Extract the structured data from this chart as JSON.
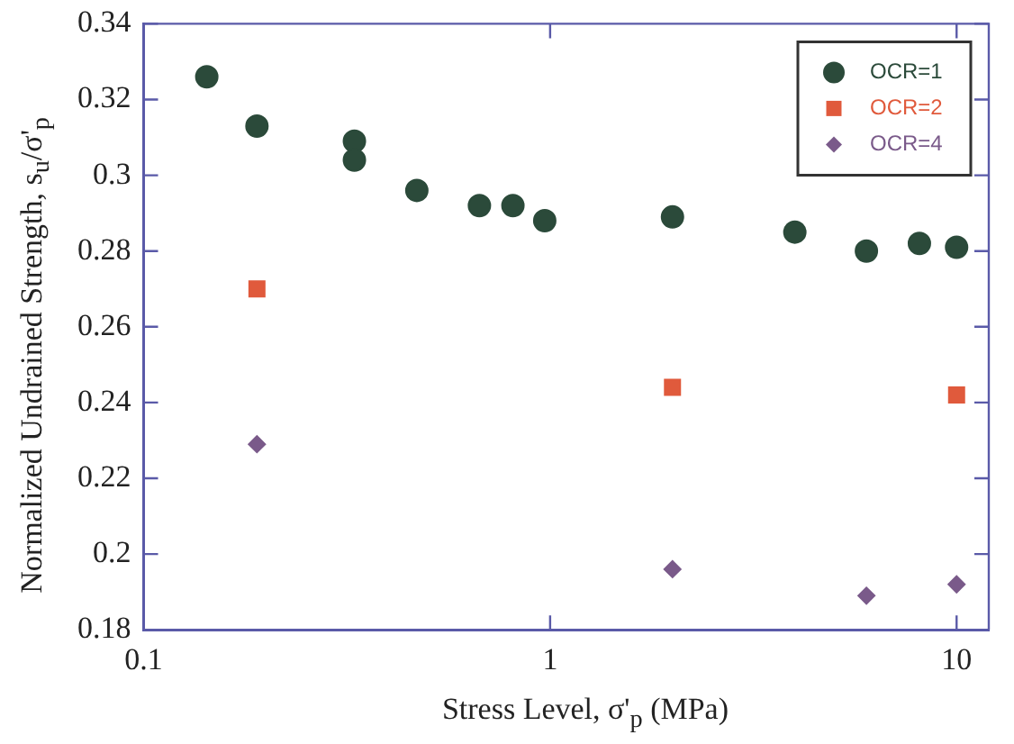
{
  "chart_data": {
    "type": "scatter",
    "xlabel": "Stress Level, σ'$_{p}$ (MPa)",
    "ylabel": "Normalized Undrained Strength, s$_{u}$/σ'$_{p}$",
    "log": "x",
    "xlim": [
      0.1,
      12
    ],
    "xticks": [
      0.1,
      1,
      10
    ],
    "ylim": [
      0.18,
      0.34
    ],
    "yticks": [
      0.18,
      0.2,
      0.22,
      0.24,
      0.26,
      0.28,
      0.3,
      0.32,
      0.34
    ],
    "grid": false,
    "legend": "top right",
    "series": [
      {
        "name": "OCR=1",
        "color": "#2b4a3a",
        "marker": "circle",
        "x": [
          0.143,
          0.19,
          0.33,
          0.33,
          0.47,
          0.67,
          0.81,
          0.97,
          2.0,
          4.0,
          6.0,
          8.1,
          10
        ],
        "values": [
          0.326,
          0.313,
          0.309,
          0.304,
          0.296,
          0.292,
          0.292,
          0.288,
          0.289,
          0.285,
          0.28,
          0.282,
          0.281
        ]
      },
      {
        "name": "OCR=2",
        "color": "#e05a3c",
        "marker": "square",
        "x": [
          0.19,
          2.0,
          10
        ],
        "values": [
          0.27,
          0.244,
          0.242
        ]
      },
      {
        "name": "OCR=4",
        "color": "#7a5a8a",
        "marker": "diamond",
        "x": [
          0.19,
          2.0,
          6.0,
          10
        ],
        "values": [
          0.229,
          0.196,
          0.189,
          0.192
        ]
      }
    ]
  }
}
